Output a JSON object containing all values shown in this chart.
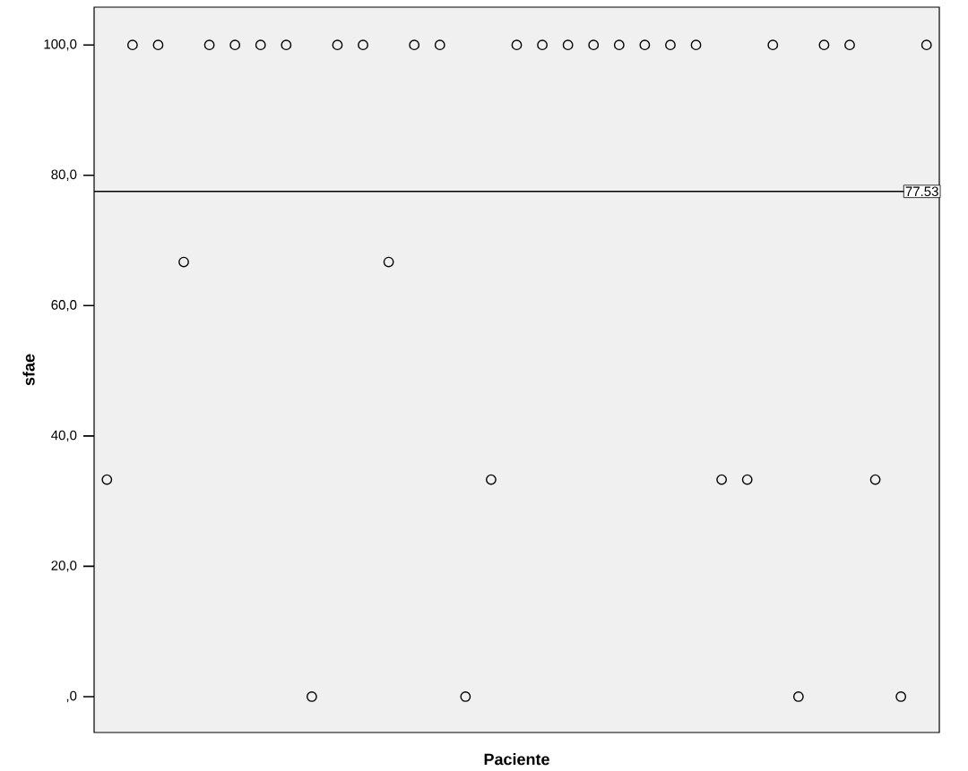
{
  "chart_data": {
    "type": "scatter",
    "xlabel": "Paciente",
    "ylabel": "sfae",
    "categories": [
      null,
      null,
      null,
      null,
      null,
      null,
      null,
      null,
      null,
      null,
      null,
      null,
      null,
      null,
      null,
      null,
      null,
      null,
      null,
      null,
      null,
      null,
      null,
      null,
      null,
      null,
      null,
      null,
      null,
      null,
      null,
      null,
      null
    ],
    "values": [
      33.3,
      100,
      100,
      66.7,
      100,
      100,
      100,
      100,
      0,
      100,
      100,
      66.7,
      100,
      100,
      0,
      33.3,
      100,
      100,
      100,
      100,
      100,
      100,
      100,
      100,
      33.3,
      33.3,
      100,
      0,
      100,
      100,
      33.3,
      0,
      100
    ],
    "color": "#000000",
    "marker": "circle",
    "ylim": [
      -5.5,
      105.8
    ],
    "yticks": [
      {
        "value": 0,
        "label": ",0"
      },
      {
        "value": 20,
        "label": "20,0"
      },
      {
        "value": 40,
        "label": "40,0"
      },
      {
        "value": 60,
        "label": "60,0"
      },
      {
        "value": 80,
        "label": "80,0"
      },
      {
        "value": 100,
        "label": "100,0"
      }
    ],
    "tick_labels": "y",
    "ref_lines": [
      {
        "axis": "y",
        "value": 77.53,
        "label": "77.53",
        "color": "#000000"
      }
    ]
  }
}
